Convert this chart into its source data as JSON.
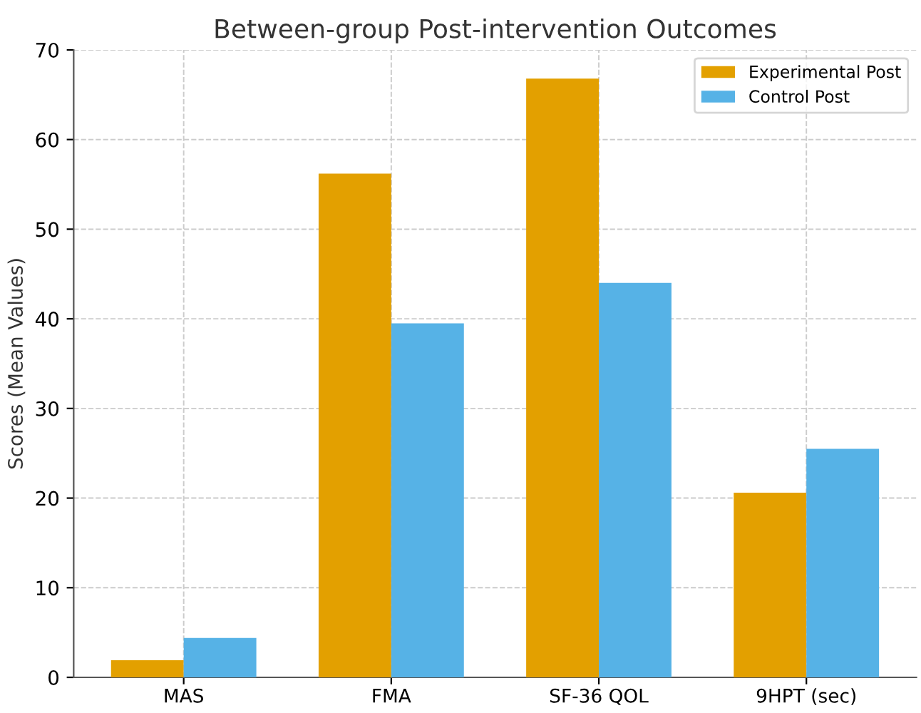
{
  "chart_data": {
    "type": "bar",
    "title": "Between-group Post-intervention Outcomes",
    "ylabel": "Scores (Mean Values)",
    "categories": [
      "MAS",
      "FMA",
      "SF-36 QOL",
      "9HPT (sec)"
    ],
    "series": [
      {
        "name": "Experimental Post",
        "color": "#e3a000",
        "values": [
          1.9,
          56.2,
          66.8,
          20.6
        ]
      },
      {
        "name": "Control Post",
        "color": "#56b2e6",
        "values": [
          4.4,
          39.5,
          44.0,
          25.5
        ]
      }
    ],
    "ylim": [
      0,
      70
    ],
    "yticks": [
      0,
      10,
      20,
      30,
      40,
      50,
      60,
      70
    ],
    "grid": true,
    "legend": "top right"
  }
}
